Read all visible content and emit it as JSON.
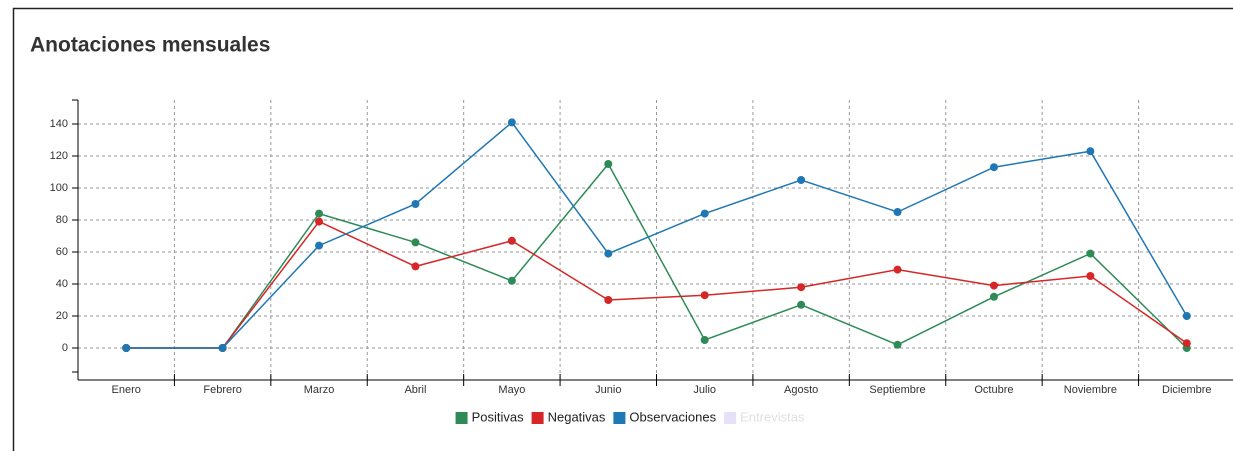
{
  "chart_data": {
    "type": "line",
    "title": "Anotaciones mensuales",
    "categories": [
      "Enero",
      "Febrero",
      "Marzo",
      "Abril",
      "Mayo",
      "Junio",
      "Julio",
      "Agosto",
      "Septiembre",
      "Octubre",
      "Noviembre",
      "Diciembre"
    ],
    "series": [
      {
        "name": "Positivas",
        "color": "#2e8b57",
        "values": [
          0,
          0,
          84,
          66,
          42,
          115,
          5,
          27,
          2,
          32,
          59,
          0
        ]
      },
      {
        "name": "Negativas",
        "color": "#d62728",
        "values": [
          0,
          0,
          79,
          51,
          67,
          30,
          33,
          38,
          49,
          39,
          45,
          3
        ]
      },
      {
        "name": "Observaciones",
        "color": "#1f77b4",
        "values": [
          0,
          0,
          64,
          90,
          141,
          59,
          84,
          105,
          85,
          113,
          123,
          20
        ]
      },
      {
        "name": "Entrevistas",
        "color": "#e6e0f8",
        "hidden": true,
        "values": [
          null,
          null,
          null,
          null,
          null,
          null,
          null,
          null,
          null,
          null,
          null,
          null
        ]
      }
    ],
    "ylim": [
      -15,
      155
    ],
    "yticks": [
      0,
      20,
      40,
      60,
      80,
      100,
      120,
      140
    ],
    "grid": true,
    "legend": "bottom"
  }
}
